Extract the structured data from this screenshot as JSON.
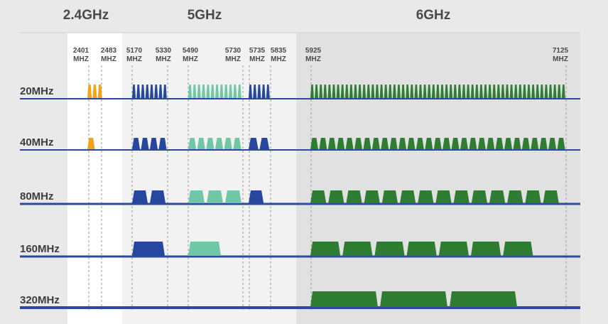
{
  "bands": [
    {
      "label": "2.4GHz"
    },
    {
      "label": "5GHz"
    },
    {
      "label": "6GHz"
    }
  ],
  "frequency_markers": [
    {
      "freq": "2401",
      "unit": "MHZ"
    },
    {
      "freq": "2483",
      "unit": "MHZ"
    },
    {
      "freq": "5170",
      "unit": "MHZ"
    },
    {
      "freq": "5330",
      "unit": "MHZ"
    },
    {
      "freq": "5490",
      "unit": "MHZ"
    },
    {
      "freq": "5730",
      "unit": "MHZ"
    },
    {
      "freq": "5735",
      "unit": "MHZ"
    },
    {
      "freq": "5835",
      "unit": "MHZ"
    },
    {
      "freq": "5925",
      "unit": "MHZ"
    },
    {
      "freq": "7125",
      "unit": "MHZ"
    }
  ],
  "rows": [
    {
      "label": "20MHz",
      "counts": {
        "b24": 3,
        "unii1": 8,
        "unii2": 12,
        "unii3": 5,
        "six": 59
      }
    },
    {
      "label": "40MHz",
      "counts": {
        "b24": 1,
        "unii1": 4,
        "unii2": 6,
        "unii3": 2,
        "six": 29
      }
    },
    {
      "label": "80MHz",
      "counts": {
        "b24": 0,
        "unii1": 2,
        "unii2": 3,
        "unii3": 1,
        "six": 14
      }
    },
    {
      "label": "160MHz",
      "counts": {
        "b24": 0,
        "unii1": 1,
        "unii2": 1,
        "unii3": 0,
        "six": 7
      }
    },
    {
      "label": "320MHz",
      "counts": {
        "b24": 0,
        "unii1": 0,
        "unii2": 0,
        "unii3": 0,
        "six": 3
      }
    }
  ],
  "colors": {
    "b24": "#f0a41c",
    "unii1": "#27479f",
    "unii2": "#6fc7a7",
    "unii3": "#27479f",
    "six": "#2e7d32",
    "baseline": "#2b4a9b",
    "text": "#4a4a4a"
  }
}
